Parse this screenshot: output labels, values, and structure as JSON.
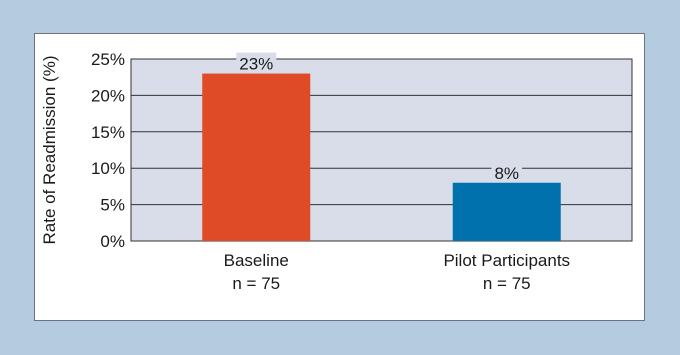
{
  "chart_data": {
    "type": "bar",
    "categories": [
      {
        "name": "Baseline",
        "n": "n = 75"
      },
      {
        "name": "Pilot Participants",
        "n": "n = 75"
      }
    ],
    "values": [
      23,
      8
    ],
    "value_labels": [
      "23%",
      "8%"
    ],
    "bar_colors": [
      "#df4b26",
      "#0071ad"
    ],
    "ylabel": "Rate of Readmission (%)",
    "ylim": [
      0,
      25
    ],
    "yticks": [
      0,
      5,
      10,
      15,
      20,
      25
    ],
    "ytick_labels": [
      "0%",
      "5%",
      "10%",
      "15%",
      "20%",
      "25%"
    ],
    "grid": true,
    "plot_background": "#d8dde9",
    "page_background": "#b5cce0"
  }
}
